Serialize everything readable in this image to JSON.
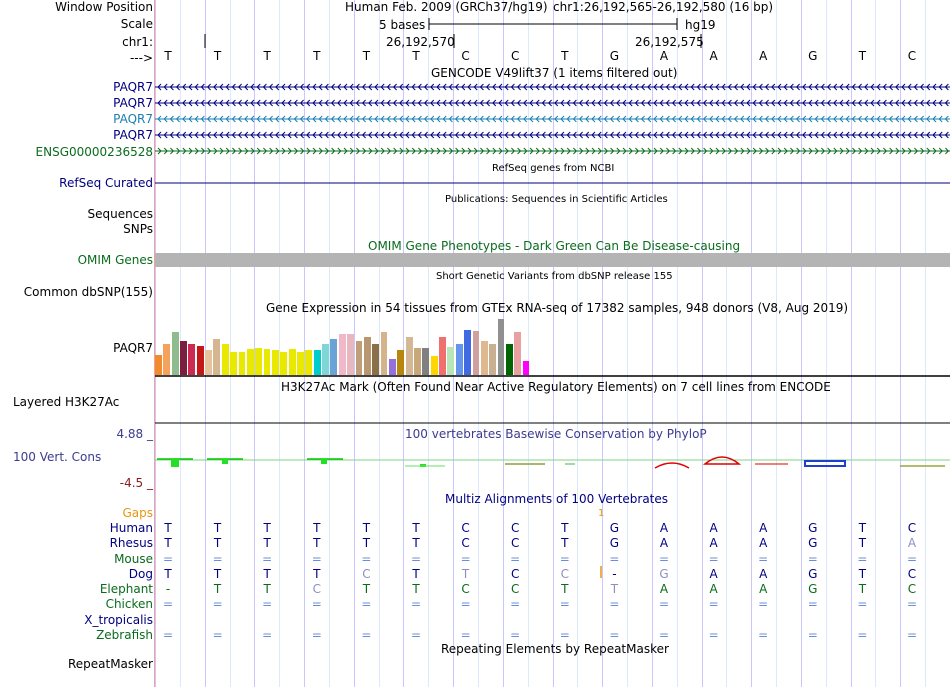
{
  "colors": {
    "navy": "#000080",
    "darkgreen": "#0b6b1d",
    "teal": "#1a7fb0",
    "purple": "#3b3b8f",
    "gapsorange": "#e8950e",
    "grid_a": "#c8c8ff",
    "grid_b": "#dde8ff"
  },
  "labels": [
    {
      "key": "winpos",
      "text": "Window Position",
      "color": "#000000",
      "align": "right"
    },
    {
      "key": "scale",
      "text": "Scale",
      "color": "#000000",
      "align": "right"
    },
    {
      "key": "chr",
      "text": "chr1:",
      "color": "#000000",
      "align": "right"
    },
    {
      "key": "arrow",
      "text": "--->",
      "color": "#000000",
      "align": "right"
    },
    {
      "key": "paqr7_1",
      "text": "PAQR7",
      "color": "#000080",
      "align": "right"
    },
    {
      "key": "paqr7_2",
      "text": "PAQR7",
      "color": "#000080",
      "align": "right"
    },
    {
      "key": "paqr7_3",
      "text": "PAQR7",
      "color": "#1a7fb0",
      "align": "right"
    },
    {
      "key": "paqr7_4",
      "text": "PAQR7",
      "color": "#000080",
      "align": "right"
    },
    {
      "key": "ensg",
      "text": "ENSG00000236528",
      "color": "#0b6b1d",
      "align": "right"
    },
    {
      "key": "refseq",
      "text": "RefSeq Curated",
      "color": "#000080",
      "align": "right"
    },
    {
      "key": "seqs",
      "text": "Sequences",
      "color": "#000000",
      "align": "right"
    },
    {
      "key": "snps",
      "text": "SNPs",
      "color": "#000000",
      "align": "right"
    },
    {
      "key": "omim",
      "text": "OMIM Genes",
      "color": "#0b6b1d",
      "align": "right"
    },
    {
      "key": "dbsnp",
      "text": "Common dbSNP(155)",
      "color": "#000000",
      "align": "right"
    },
    {
      "key": "gtex",
      "text": "PAQR7",
      "color": "#000000",
      "align": "right"
    },
    {
      "key": "h3k",
      "text": "Layered H3K27Ac",
      "color": "#000000",
      "align": "left"
    },
    {
      "key": "cons_hi",
      "text": "4.88 _",
      "color": "#3b3b8f",
      "align": "right"
    },
    {
      "key": "cons",
      "text": "100 Vert. Cons",
      "color": "#3b3b8f",
      "align": "left"
    },
    {
      "key": "cons_lo",
      "text": "-4.5 _",
      "color": "#8b1a1a",
      "align": "right"
    },
    {
      "key": "gaps",
      "text": "Gaps",
      "color": "#e8950e",
      "align": "right"
    },
    {
      "key": "human",
      "text": "Human",
      "color": "#000080",
      "align": "right"
    },
    {
      "key": "rhesus",
      "text": "Rhesus",
      "color": "#000080",
      "align": "right"
    },
    {
      "key": "mouse",
      "text": "Mouse",
      "color": "#0b6b1d",
      "align": "right"
    },
    {
      "key": "dog",
      "text": "Dog",
      "color": "#000080",
      "align": "right"
    },
    {
      "key": "elephant",
      "text": "Elephant",
      "color": "#0b6b1d",
      "align": "right"
    },
    {
      "key": "chicken",
      "text": "Chicken",
      "color": "#0b6b1d",
      "align": "right"
    },
    {
      "key": "xtrop",
      "text": "X_tropicalis",
      "color": "#000080",
      "align": "right"
    },
    {
      "key": "zebrafish",
      "text": "Zebrafish",
      "color": "#0b6b1d",
      "align": "right"
    },
    {
      "key": "repeat",
      "text": "RepeatMasker",
      "color": "#000000",
      "align": "right"
    }
  ],
  "header": {
    "assembly": "Human Feb. 2009 (GRCh37/hg19)",
    "position": "chr1:26,192,565-26,192,580 (16 bp)",
    "scale_text": "5 bases",
    "scale_db": "hg19",
    "coord_1": "26,192,570",
    "coord_2": "26,192,575"
  },
  "bases": [
    "T",
    "T",
    "T",
    "T",
    "T",
    "T",
    "C",
    "C",
    "T",
    "G",
    "A",
    "A",
    "A",
    "G",
    "T",
    "C"
  ],
  "track_titles": {
    "gencode": "GENCODE V49lift37 (1 items filtered out)",
    "refseq": "RefSeq genes from NCBI",
    "pubs": "Publications: Sequences in Scientific Articles",
    "omim": "OMIM Gene Phenotypes - Dark Green Can Be Disease-causing",
    "dbsnp": "Short Genetic Variants from dbSNP release 155",
    "gtex": "Gene Expression in 54 tissues from GTEx RNA-seq of 17382 samples, 948 donors (V8, Aug 2019)",
    "h3k": "H3K27Ac Mark (Often Found Near Active Regulatory Elements) on 7 cell lines from ENCODE",
    "phylop": "100 vertebrates Basewise Conservation by PhyloP",
    "multiz": "Multiz Alignments of 100 Vertebrates",
    "rmsk": "Repeating Elements by RepeatMasker"
  },
  "gaps_value": "1",
  "alignment": [
    {
      "species": "Human",
      "color": "#000080",
      "row": [
        "T",
        "T",
        "T",
        "T",
        "T",
        "T",
        "C",
        "C",
        "T",
        "G",
        "A",
        "A",
        "A",
        "G",
        "T",
        "C"
      ]
    },
    {
      "species": "Rhesus",
      "color": "#000080",
      "row": [
        "T",
        "T",
        "T",
        "T",
        "T",
        "T",
        "C",
        "C",
        "T",
        "G",
        "A",
        "A",
        "A",
        "G",
        "T",
        "A"
      ]
    },
    {
      "species": "Mouse",
      "color": "#0b6b1d",
      "row": [
        "=",
        "=",
        "=",
        "=",
        "=",
        "=",
        "=",
        "=",
        "=",
        "=",
        "=",
        "=",
        "=",
        "=",
        "=",
        "="
      ]
    },
    {
      "species": "Dog",
      "color": "#000080",
      "row": [
        "T",
        "T",
        "T",
        "T",
        "C",
        "T",
        "T",
        "C",
        "C",
        "-",
        "G",
        "A",
        "A",
        "G",
        "T",
        "C"
      ]
    },
    {
      "species": "Elephant",
      "color": "#0b6b1d",
      "row": [
        "-",
        "T",
        "T",
        "C",
        "T",
        "T",
        "C",
        "C",
        "T",
        "T",
        "A",
        "A",
        "A",
        "G",
        "T",
        "C"
      ]
    },
    {
      "species": "Chicken",
      "color": "#0b6b1d",
      "row": [
        "=",
        "=",
        "=",
        "=",
        "=",
        "=",
        "=",
        "=",
        "=",
        "=",
        "=",
        "=",
        "=",
        "=",
        "=",
        "="
      ]
    },
    {
      "species": "X_tropicalis",
      "color": "#000080",
      "row": [
        "",
        "",
        "",
        "",
        "",
        "",
        "",
        "",
        "",
        "",
        "",
        "",
        "",
        "",
        "",
        ""
      ]
    },
    {
      "species": "Zebrafish",
      "color": "#0b6b1d",
      "row": [
        "=",
        "=",
        "=",
        "=",
        "=",
        "=",
        "=",
        "=",
        "=",
        "=",
        "=",
        "=",
        "=",
        "=",
        "=",
        "="
      ]
    }
  ],
  "gtex_bar_colors": [
    "#f28b2e",
    "#f5a25d",
    "#8fbc8f",
    "#7a1f3d",
    "#cc2a52",
    "#c41818",
    "#e6c29e",
    "#d6b690",
    "#e8e800",
    "#e8e800",
    "#e8e800",
    "#e8e800",
    "#e8e800",
    "#e8e800",
    "#e8e800",
    "#e8e800",
    "#e8e800",
    "#e8e800",
    "#e8e800",
    "#00cccc",
    "#7fd6d6",
    "#6aa3d6",
    "#f0b8c8",
    "#e8b8c0",
    "#c09e78",
    "#b89670",
    "#8b6f47",
    "#d4b48a",
    "#9370db",
    "#b8860b",
    "#d4b896",
    "#c8a878",
    "#808080",
    "#ffd700",
    "#f07070",
    "#b8e6b8",
    "#6495ed",
    "#4169e1",
    "#d0a0a0",
    "#e0b890",
    "#c8b090",
    "#909090",
    "#006400",
    "#e8a0a0",
    "#ff00ff"
  ],
  "gtex_bar_levels": [
    0.45,
    0.7,
    0.95,
    0.75,
    0.68,
    0.65,
    0.55,
    0.8,
    0.7,
    0.5,
    0.5,
    0.58,
    0.6,
    0.58,
    0.55,
    0.5,
    0.58,
    0.5,
    0.55,
    0.55,
    0.7,
    0.8,
    0.92,
    0.92,
    0.75,
    0.85,
    0.7,
    0.95,
    0.35,
    0.55,
    0.85,
    0.6,
    0.6,
    0.42,
    0.85,
    0.62,
    0.7,
    1.0,
    0.98,
    0.75,
    0.7,
    1.25,
    0.7,
    0.95,
    0.32
  ]
}
